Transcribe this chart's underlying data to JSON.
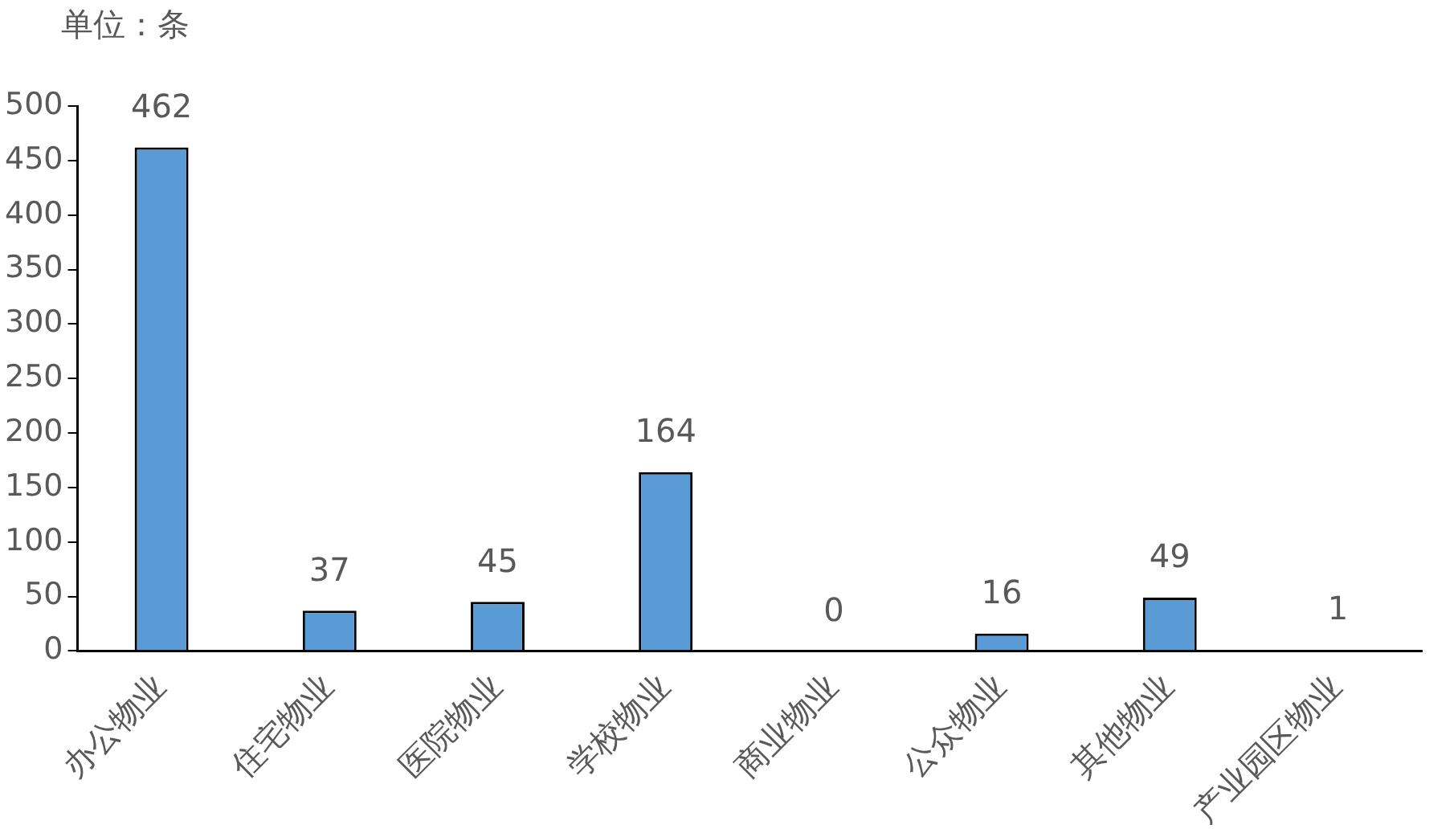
{
  "chart_data": {
    "type": "bar",
    "ylabel": "单位：条",
    "categories": [
      "办公物业",
      "住宅物业",
      "医院物业",
      "学校物业",
      "商业物业",
      "公众物业",
      "其他物业",
      "产业园区物业"
    ],
    "values": [
      462,
      37,
      45,
      164,
      0,
      16,
      49,
      1
    ],
    "color": "#5b9bd5",
    "ylim": [
      0,
      500
    ],
    "yticks": [
      0,
      50,
      100,
      150,
      200,
      250,
      300,
      350,
      400,
      450,
      500
    ],
    "grid": false,
    "legend": false,
    "data_labels": true
  }
}
